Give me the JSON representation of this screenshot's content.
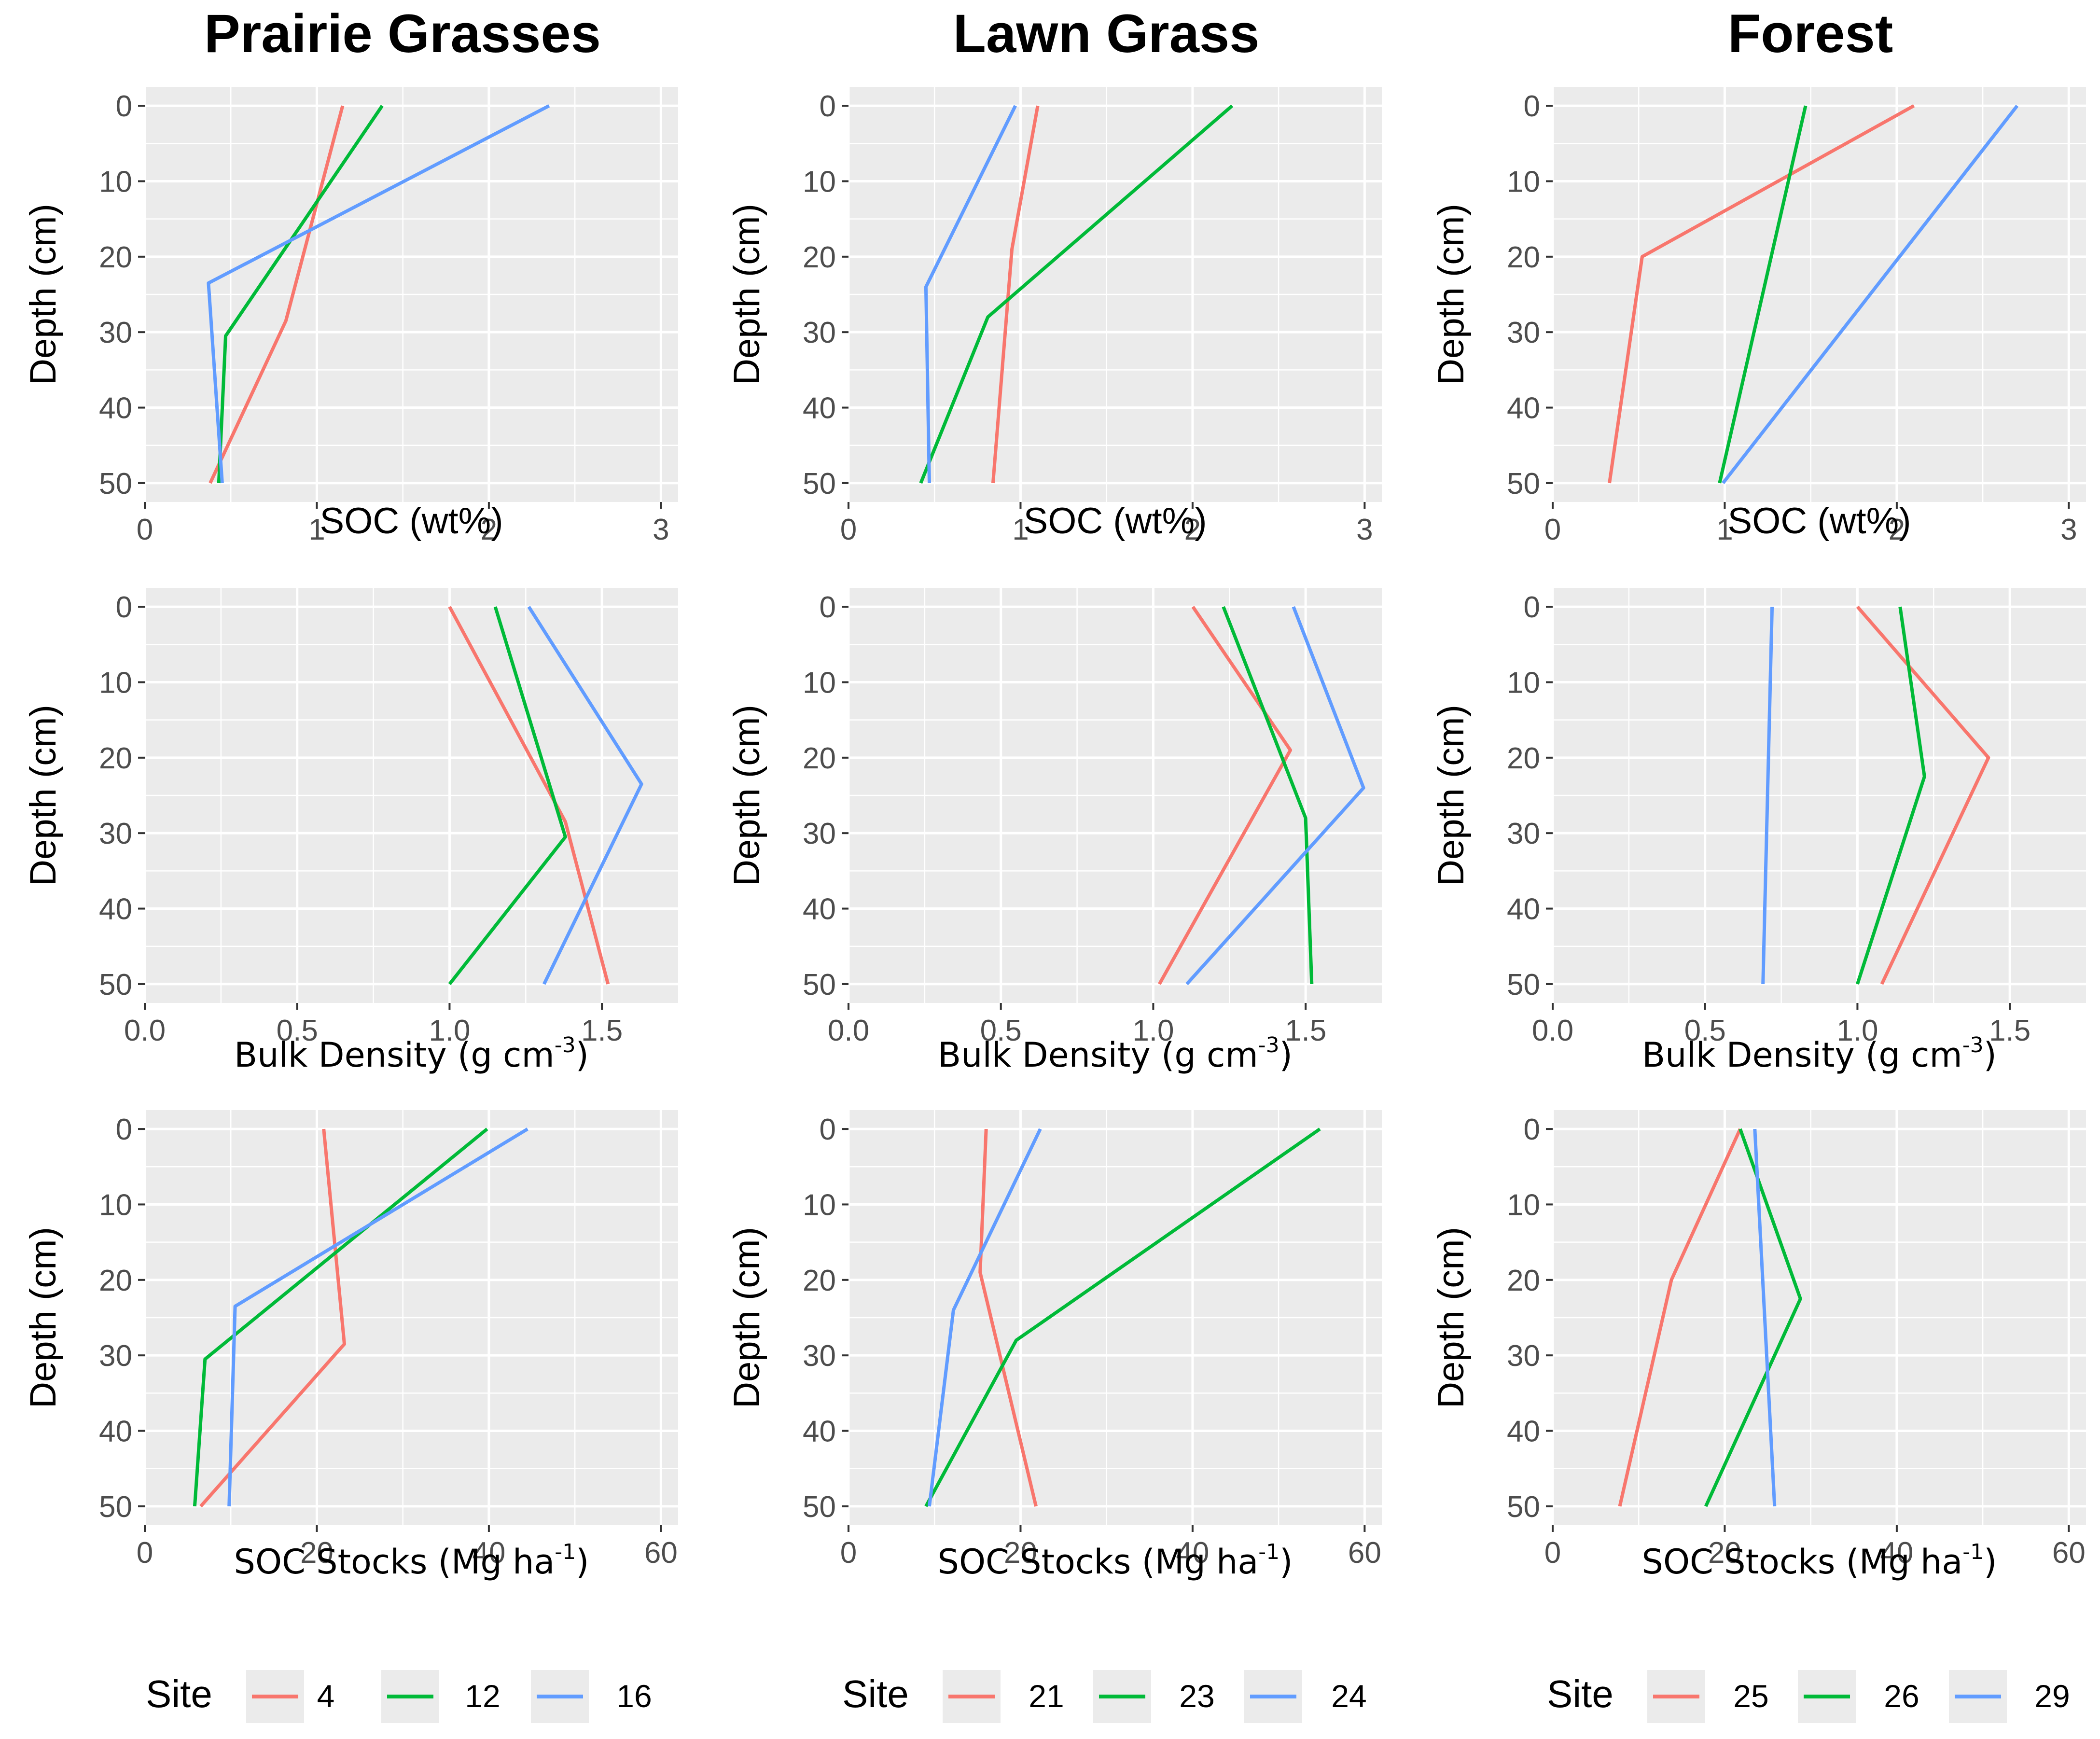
{
  "column_titles": [
    "Prairie Grasses",
    "Lawn Grass",
    "Forest"
  ],
  "row_axes": [
    {
      "xlabel": "SOC (wt%)",
      "sup": "",
      "xlim": [
        0,
        3.1
      ],
      "ticks": [
        0,
        1,
        2,
        3
      ],
      "tick_labels": [
        "0",
        "1",
        "2",
        "3"
      ]
    },
    {
      "xlabel": "Bulk Density (g cm",
      "sup": "-3",
      "xlim": [
        0,
        1.75
      ],
      "ticks": [
        0,
        0.5,
        1,
        1.5
      ],
      "tick_labels": [
        "0.0",
        "0.5",
        "1.0",
        "1.5"
      ]
    },
    {
      "xlabel": "SOC Stocks (Mg ha",
      "sup": "-1",
      "xlim": [
        0,
        62
      ],
      "ticks": [
        0,
        20,
        40,
        60
      ],
      "tick_labels": [
        "0",
        "20",
        "40",
        "60"
      ]
    }
  ],
  "ylabel": "Depth (cm)",
  "y_ticks": [
    0,
    10,
    20,
    30,
    40,
    50
  ],
  "y_tick_labels": [
    "0",
    "10",
    "20",
    "30",
    "40",
    "50"
  ],
  "ylim": [
    -2.5,
    52.5
  ],
  "legends": [
    {
      "title": "Site",
      "entries": [
        {
          "label": "4",
          "color": "#F8766D"
        },
        {
          "label": "12",
          "color": "#00BA38"
        },
        {
          "label": "16",
          "color": "#619CFF"
        }
      ]
    },
    {
      "title": "Site",
      "entries": [
        {
          "label": "21",
          "color": "#F8766D"
        },
        {
          "label": "23",
          "color": "#00BA38"
        },
        {
          "label": "24",
          "color": "#619CFF"
        }
      ]
    },
    {
      "title": "Site",
      "entries": [
        {
          "label": "25",
          "color": "#F8766D"
        },
        {
          "label": "26",
          "color": "#00BA38"
        },
        {
          "label": "29",
          "color": "#619CFF"
        }
      ]
    }
  ],
  "chart_data": [
    {
      "type": "line",
      "title": "Prairie Grasses",
      "xlabel": "SOC (wt%)",
      "ylabel": "Depth (cm)",
      "xlim": [
        0,
        3.1
      ],
      "ylim": [
        50,
        0
      ],
      "series": [
        {
          "name": "4",
          "color": "#F8766D",
          "points": [
            [
              1.15,
              0
            ],
            [
              0.82,
              28.5
            ],
            [
              0.38,
              50
            ]
          ]
        },
        {
          "name": "12",
          "color": "#00BA38",
          "points": [
            [
              1.38,
              0
            ],
            [
              0.47,
              30.5
            ],
            [
              0.43,
              50
            ]
          ]
        },
        {
          "name": "16",
          "color": "#619CFF",
          "points": [
            [
              2.35,
              0
            ],
            [
              0.37,
              23.5
            ],
            [
              0.45,
              50
            ]
          ]
        }
      ]
    },
    {
      "type": "line",
      "title": "Lawn Grass",
      "xlabel": "SOC (wt%)",
      "ylabel": "Depth (cm)",
      "xlim": [
        0,
        3.1
      ],
      "ylim": [
        50,
        0
      ],
      "series": [
        {
          "name": "21",
          "color": "#F8766D",
          "points": [
            [
              1.1,
              0
            ],
            [
              0.95,
              19
            ],
            [
              0.84,
              50
            ]
          ]
        },
        {
          "name": "23",
          "color": "#00BA38",
          "points": [
            [
              2.23,
              0
            ],
            [
              0.81,
              28
            ],
            [
              0.42,
              50
            ]
          ]
        },
        {
          "name": "24",
          "color": "#619CFF",
          "points": [
            [
              0.97,
              0
            ],
            [
              0.45,
              24
            ],
            [
              0.47,
              50
            ]
          ]
        }
      ]
    },
    {
      "type": "line",
      "title": "Forest",
      "xlabel": "SOC (wt%)",
      "ylabel": "Depth (cm)",
      "xlim": [
        0,
        3.1
      ],
      "ylim": [
        50,
        0
      ],
      "series": [
        {
          "name": "25",
          "color": "#F8766D",
          "points": [
            [
              2.1,
              0
            ],
            [
              0.52,
              20
            ],
            [
              0.33,
              50
            ]
          ]
        },
        {
          "name": "26",
          "color": "#00BA38",
          "points": [
            [
              1.47,
              0
            ],
            [
              0.97,
              50
            ]
          ]
        },
        {
          "name": "29",
          "color": "#619CFF",
          "points": [
            [
              2.7,
              0
            ],
            [
              0.99,
              50
            ]
          ]
        }
      ]
    },
    {
      "type": "line",
      "title": "Prairie Grasses",
      "xlabel": "Bulk Density (g cm-3)",
      "ylabel": "Depth (cm)",
      "xlim": [
        0,
        1.75
      ],
      "ylim": [
        50,
        0
      ],
      "series": [
        {
          "name": "4",
          "color": "#F8766D",
          "points": [
            [
              1.0,
              0
            ],
            [
              1.38,
              28.5
            ],
            [
              1.52,
              50
            ]
          ]
        },
        {
          "name": "12",
          "color": "#00BA38",
          "points": [
            [
              1.15,
              0
            ],
            [
              1.38,
              30.5
            ],
            [
              1.0,
              50
            ]
          ]
        },
        {
          "name": "16",
          "color": "#619CFF",
          "points": [
            [
              1.26,
              0
            ],
            [
              1.63,
              23.5
            ],
            [
              1.31,
              50
            ]
          ]
        }
      ]
    },
    {
      "type": "line",
      "title": "Lawn Grass",
      "xlabel": "Bulk Density (g cm-3)",
      "ylabel": "Depth (cm)",
      "xlim": [
        0,
        1.75
      ],
      "ylim": [
        50,
        0
      ],
      "series": [
        {
          "name": "21",
          "color": "#F8766D",
          "points": [
            [
              1.13,
              0
            ],
            [
              1.45,
              19
            ],
            [
              1.02,
              50
            ]
          ]
        },
        {
          "name": "23",
          "color": "#00BA38",
          "points": [
            [
              1.23,
              0
            ],
            [
              1.5,
              28
            ],
            [
              1.52,
              50
            ]
          ]
        },
        {
          "name": "24",
          "color": "#619CFF",
          "points": [
            [
              1.46,
              0
            ],
            [
              1.69,
              24
            ],
            [
              1.11,
              50
            ]
          ]
        }
      ]
    },
    {
      "type": "line",
      "title": "Forest",
      "xlabel": "Bulk Density (g cm-3)",
      "ylabel": "Depth (cm)",
      "xlim": [
        0,
        1.75
      ],
      "ylim": [
        50,
        0
      ],
      "series": [
        {
          "name": "25",
          "color": "#F8766D",
          "points": [
            [
              1.0,
              0
            ],
            [
              1.43,
              20
            ],
            [
              1.08,
              50
            ]
          ]
        },
        {
          "name": "26",
          "color": "#00BA38",
          "points": [
            [
              1.14,
              0
            ],
            [
              1.22,
              22.5
            ],
            [
              1.0,
              50
            ]
          ]
        },
        {
          "name": "29",
          "color": "#619CFF",
          "points": [
            [
              0.72,
              0
            ],
            [
              0.69,
              50
            ]
          ]
        }
      ]
    },
    {
      "type": "line",
      "title": "Prairie Grasses",
      "xlabel": "SOC Stocks (Mg ha-1)",
      "ylabel": "Depth (cm)",
      "xlim": [
        0,
        62
      ],
      "ylim": [
        50,
        0
      ],
      "series": [
        {
          "name": "4",
          "color": "#F8766D",
          "points": [
            [
              20.8,
              0
            ],
            [
              23.2,
              28.5
            ],
            [
              6.5,
              50
            ]
          ]
        },
        {
          "name": "12",
          "color": "#00BA38",
          "points": [
            [
              39.8,
              0
            ],
            [
              7.0,
              30.5
            ],
            [
              5.8,
              50
            ]
          ]
        },
        {
          "name": "16",
          "color": "#619CFF",
          "points": [
            [
              44.5,
              0
            ],
            [
              10.5,
              23.5
            ],
            [
              9.8,
              50
            ]
          ]
        }
      ]
    },
    {
      "type": "line",
      "title": "Lawn Grass",
      "xlabel": "SOC Stocks (Mg ha-1)",
      "ylabel": "Depth (cm)",
      "xlim": [
        0,
        62
      ],
      "ylim": [
        50,
        0
      ],
      "series": [
        {
          "name": "21",
          "color": "#F8766D",
          "points": [
            [
              16.0,
              0
            ],
            [
              15.3,
              19
            ],
            [
              21.8,
              50
            ]
          ]
        },
        {
          "name": "23",
          "color": "#00BA38",
          "points": [
            [
              54.8,
              0
            ],
            [
              19.5,
              28
            ],
            [
              9.0,
              50
            ]
          ]
        },
        {
          "name": "24",
          "color": "#619CFF",
          "points": [
            [
              22.3,
              0
            ],
            [
              12.2,
              24
            ],
            [
              9.4,
              50
            ]
          ]
        }
      ]
    },
    {
      "type": "line",
      "title": "Forest",
      "xlabel": "SOC Stocks (Mg ha-1)",
      "ylabel": "Depth (cm)",
      "xlim": [
        0,
        62
      ],
      "ylim": [
        50,
        0
      ],
      "series": [
        {
          "name": "25",
          "color": "#F8766D",
          "points": [
            [
              21.8,
              0
            ],
            [
              13.8,
              20
            ],
            [
              7.8,
              50
            ]
          ]
        },
        {
          "name": "26",
          "color": "#00BA38",
          "points": [
            [
              21.8,
              0
            ],
            [
              28.8,
              22.5
            ],
            [
              17.8,
              50
            ]
          ]
        },
        {
          "name": "29",
          "color": "#619CFF",
          "points": [
            [
              23.5,
              0
            ],
            [
              25.8,
              50
            ]
          ]
        }
      ]
    }
  ]
}
